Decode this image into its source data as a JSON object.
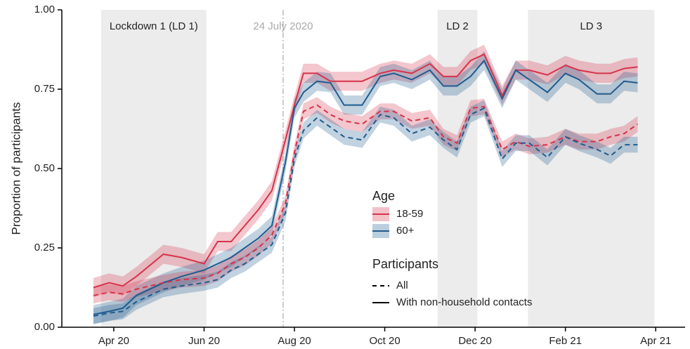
{
  "chart_data": {
    "type": "line",
    "y_label": "Proportion of participants",
    "xlim": [
      2.85,
      16.65
    ],
    "ylim": [
      0,
      1
    ],
    "xticks": [
      {
        "value": 4,
        "label": "Apr 20"
      },
      {
        "value": 6,
        "label": "Jun 20"
      },
      {
        "value": 8,
        "label": "Aug 20"
      },
      {
        "value": 10,
        "label": "Oct 20"
      },
      {
        "value": 12,
        "label": "Dec 20"
      },
      {
        "value": 14,
        "label": "Feb 21"
      },
      {
        "value": 16,
        "label": "Apr 21"
      }
    ],
    "yticks": [
      {
        "value": 0,
        "label": "0.00"
      },
      {
        "value": 0.25,
        "label": "0.25"
      },
      {
        "value": 0.5,
        "label": "0.50"
      },
      {
        "value": 0.75,
        "label": "0.75"
      },
      {
        "value": 1,
        "label": "1.00"
      }
    ],
    "grid": false,
    "periods": [
      {
        "label": "Lockdown 1 (LD 1)",
        "start": 3.72,
        "end": 6.05
      },
      {
        "label": "LD 2",
        "start": 11.17,
        "end": 12.05
      },
      {
        "label": "LD 3",
        "start": 13.17,
        "end": 15.97
      }
    ],
    "marker": {
      "x": 7.75,
      "label": "24 July 2020"
    },
    "legend": {
      "age": {
        "title": "Age",
        "entries": [
          {
            "name": "18-59",
            "color": "#d6334a"
          },
          {
            "name": "60+",
            "color": "#1f5c8f"
          }
        ]
      },
      "participants": {
        "title": "Participants",
        "entries": [
          {
            "name": "All",
            "dashed": true
          },
          {
            "name": "With non-household contacts",
            "dashed": false
          }
        ]
      }
    },
    "x": [
      3.55,
      3.9,
      4.2,
      4.5,
      5.1,
      5.5,
      6.0,
      6.3,
      6.6,
      6.9,
      7.2,
      7.5,
      7.8,
      8.0,
      8.2,
      8.5,
      8.8,
      9.1,
      9.5,
      9.9,
      10.2,
      10.6,
      11.0,
      11.3,
      11.6,
      11.9,
      12.2,
      12.6,
      12.9,
      13.2,
      13.6,
      14.0,
      14.3,
      14.7,
      15.0,
      15.3,
      15.6
    ],
    "series": [
      {
        "age": 0,
        "participants": 1,
        "ci": 0.03,
        "values": [
          0.125,
          0.14,
          0.13,
          0.16,
          0.23,
          0.22,
          0.2,
          0.27,
          0.27,
          0.32,
          0.37,
          0.43,
          0.59,
          0.7,
          0.8,
          0.8,
          0.775,
          0.775,
          0.775,
          0.8,
          0.81,
          0.8,
          0.83,
          0.79,
          0.79,
          0.84,
          0.86,
          0.73,
          0.81,
          0.81,
          0.795,
          0.825,
          0.81,
          0.8,
          0.8,
          0.815,
          0.82
        ]
      },
      {
        "age": 1,
        "participants": 1,
        "ci": 0.03,
        "values": [
          0.04,
          0.05,
          0.06,
          0.1,
          0.14,
          0.16,
          0.18,
          0.2,
          0.22,
          0.25,
          0.28,
          0.32,
          0.52,
          0.69,
          0.74,
          0.775,
          0.77,
          0.7,
          0.7,
          0.79,
          0.8,
          0.78,
          0.81,
          0.76,
          0.76,
          0.79,
          0.84,
          0.72,
          0.81,
          0.78,
          0.74,
          0.8,
          0.78,
          0.735,
          0.735,
          0.775,
          0.77
        ]
      },
      {
        "age": 0,
        "participants": 0,
        "ci": 0.025,
        "values": [
          0.1,
          0.11,
          0.105,
          0.12,
          0.14,
          0.15,
          0.155,
          0.17,
          0.2,
          0.22,
          0.25,
          0.29,
          0.39,
          0.55,
          0.68,
          0.7,
          0.67,
          0.65,
          0.64,
          0.68,
          0.68,
          0.65,
          0.66,
          0.6,
          0.58,
          0.69,
          0.695,
          0.56,
          0.585,
          0.57,
          0.575,
          0.6,
          0.585,
          0.585,
          0.6,
          0.61,
          0.64
        ]
      },
      {
        "age": 1,
        "participants": 0,
        "ci": 0.025,
        "values": [
          0.035,
          0.045,
          0.05,
          0.08,
          0.12,
          0.13,
          0.14,
          0.15,
          0.18,
          0.2,
          0.23,
          0.26,
          0.36,
          0.53,
          0.62,
          0.66,
          0.63,
          0.6,
          0.59,
          0.67,
          0.66,
          0.61,
          0.63,
          0.59,
          0.56,
          0.67,
          0.69,
          0.53,
          0.58,
          0.58,
          0.535,
          0.6,
          0.58,
          0.56,
          0.54,
          0.575,
          0.575
        ]
      }
    ]
  }
}
